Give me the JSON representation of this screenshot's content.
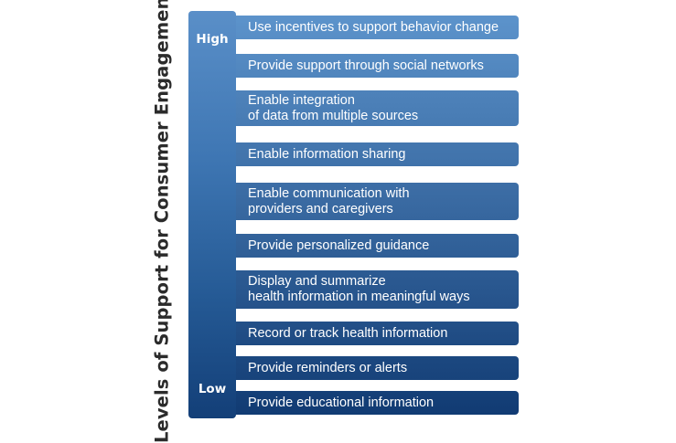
{
  "axis_title": "Levels of Support for Consumer Engagement",
  "levels": {
    "high": "High",
    "low": "Low"
  },
  "strategies": [
    {
      "lines": [
        "Use incentives to support behavior change"
      ]
    },
    {
      "lines": [
        "Provide support through social networks"
      ]
    },
    {
      "lines": [
        "Enable integration",
        "of data from multiple sources"
      ]
    },
    {
      "lines": [
        "Enable information sharing"
      ]
    },
    {
      "lines": [
        "Enable communication with",
        "providers and caregivers"
      ]
    },
    {
      "lines": [
        "Provide personalized guidance"
      ]
    },
    {
      "lines": [
        "Display and summarize",
        "health information in meaningful ways"
      ]
    },
    {
      "lines": [
        "Record or track health information"
      ]
    },
    {
      "lines": [
        "Provide reminders or alerts"
      ]
    },
    {
      "lines": [
        "Provide educational information"
      ]
    }
  ],
  "colors": {
    "bar_top": "#5a8fc8",
    "bar_bottom": "#133f78",
    "title_text": "#2b2b2b",
    "label_text": "#ffffff"
  }
}
